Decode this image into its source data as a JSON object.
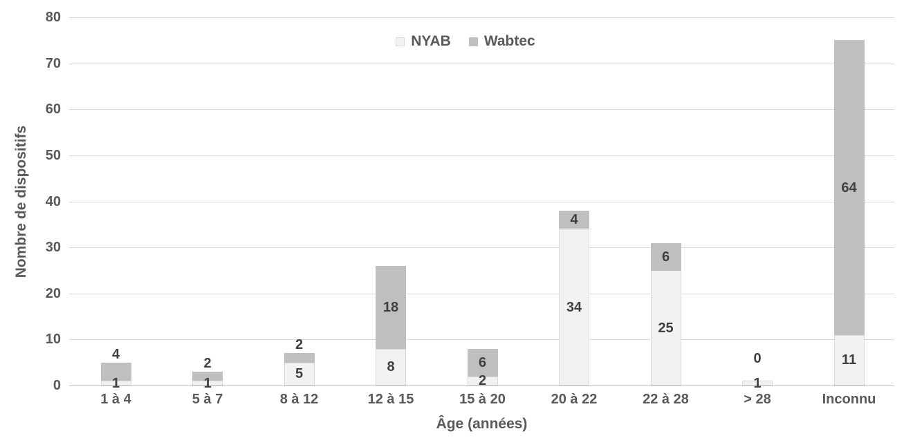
{
  "chart_data": {
    "type": "bar",
    "stacked": true,
    "title": "",
    "xlabel": "Âge (années)",
    "ylabel": "Nombre de dispositifs",
    "categories": [
      "1 à 4",
      "5 à 7",
      "8 à 12",
      "12 à 15",
      "15 à 20",
      "20 à 22",
      "22 à 28",
      "> 28",
      "Inconnu"
    ],
    "series": [
      {
        "name": "NYAB",
        "color": "#f2f2f2",
        "border_color": "#d9d9d9",
        "values": [
          1,
          1,
          5,
          8,
          2,
          34,
          25,
          1,
          11
        ]
      },
      {
        "name": "Wabtec",
        "color": "#bfbfbf",
        "values": [
          4,
          2,
          2,
          18,
          6,
          4,
          6,
          0,
          64
        ]
      }
    ],
    "totals": [
      5,
      3,
      7,
      26,
      8,
      38,
      31,
      1,
      75
    ],
    "ylim": [
      0,
      80
    ],
    "ytick_step": 10,
    "ytick_labels": [
      "0",
      "10",
      "20",
      "30",
      "40",
      "50",
      "60",
      "70",
      "80"
    ],
    "grid": "horizontal",
    "legend_position": "top-center",
    "data_labels": true,
    "label_placement_hints": {
      "nyab": [
        "center",
        "center",
        "center",
        "center",
        "center",
        "center",
        "center",
        "center",
        "center"
      ],
      "wabtec": [
        "above",
        "above",
        "above",
        "inside",
        "inside",
        "inside",
        "inside",
        "above-far",
        "inside"
      ]
    }
  },
  "colors": {
    "gridline": "#d9d9d9",
    "axis_line": "#c2c2c2",
    "tick_text": "#595959",
    "data_label_text": "#3f3f3f",
    "nyab_fill": "#f2f2f2",
    "nyab_border": "#d9d9d9",
    "wabtec_fill": "#bfbfbf",
    "background": "#ffffff"
  }
}
